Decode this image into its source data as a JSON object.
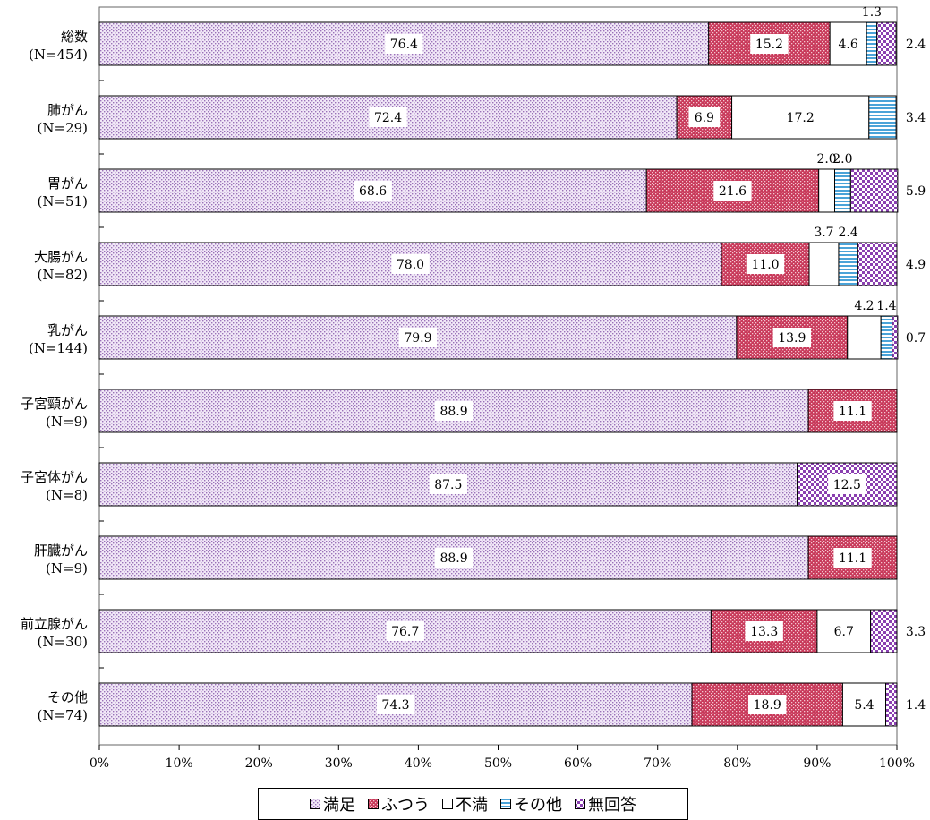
{
  "chart_data": {
    "type": "bar",
    "orientation": "horizontal",
    "stacked": true,
    "percent": true,
    "categories": [
      {
        "label": "総数",
        "n": "(N=454)"
      },
      {
        "label": "肺がん",
        "n": "(N=29)"
      },
      {
        "label": "胃がん",
        "n": "(N=51)"
      },
      {
        "label": "大腸がん",
        "n": "(N=82)"
      },
      {
        "label": "乳がん",
        "n": "(N=144)"
      },
      {
        "label": "子宮頸がん",
        "n": "(N=9)"
      },
      {
        "label": "子宮体がん",
        "n": "(N=8)"
      },
      {
        "label": "肝臓がん",
        "n": "(N=9)"
      },
      {
        "label": "前立腺がん",
        "n": "(N=30)"
      },
      {
        "label": "その他",
        "n": "(N=74)"
      }
    ],
    "series": [
      {
        "name": "満足",
        "color": "#cbb4df",
        "values": [
          76.4,
          72.4,
          68.6,
          78.0,
          79.9,
          88.9,
          87.5,
          88.9,
          76.7,
          74.3
        ]
      },
      {
        "name": "ふつう",
        "color": "#c8395a",
        "values": [
          15.2,
          6.9,
          21.6,
          11.0,
          13.9,
          11.1,
          0,
          11.1,
          13.3,
          18.9
        ]
      },
      {
        "name": "不満",
        "color": "#ffffff",
        "values": [
          4.6,
          17.2,
          2.0,
          3.7,
          4.2,
          0,
          0,
          0,
          6.7,
          5.4
        ]
      },
      {
        "name": "その他",
        "color": "#4aa3d8",
        "values": [
          1.3,
          3.4,
          2.0,
          2.4,
          1.4,
          0,
          0,
          0,
          0,
          0
        ]
      },
      {
        "name": "無回答",
        "color": "#8a3fb0",
        "values": [
          2.4,
          0,
          5.9,
          4.9,
          0.7,
          0,
          12.5,
          0,
          3.3,
          1.4
        ]
      }
    ],
    "data_labels": [
      [
        {
          "s": 0,
          "text": "76.4",
          "pos": "inside",
          "boxed": true
        },
        {
          "s": 1,
          "text": "15.2",
          "pos": "inside",
          "boxed": true
        },
        {
          "s": 2,
          "text": "4.6",
          "pos": "inside",
          "boxed": true
        },
        {
          "s": 3,
          "text": "1.3",
          "pos": "above"
        },
        {
          "s": 4,
          "text": "2.4",
          "pos": "right"
        }
      ],
      [
        {
          "s": 0,
          "text": "72.4",
          "pos": "inside",
          "boxed": true
        },
        {
          "s": 1,
          "text": "6.9",
          "pos": "inside",
          "boxed": true
        },
        {
          "s": 2,
          "text": "17.2",
          "pos": "inside",
          "boxed": false
        },
        {
          "s": 3,
          "text": "3.4",
          "pos": "right"
        }
      ],
      [
        {
          "s": 0,
          "text": "68.6",
          "pos": "inside",
          "boxed": true
        },
        {
          "s": 1,
          "text": "21.6",
          "pos": "inside",
          "boxed": true
        },
        {
          "s": 2,
          "text": "2.0",
          "pos": "above"
        },
        {
          "s": 3,
          "text": "2.0",
          "pos": "above"
        },
        {
          "s": 4,
          "text": "5.9",
          "pos": "right"
        }
      ],
      [
        {
          "s": 0,
          "text": "78.0",
          "pos": "inside",
          "boxed": true
        },
        {
          "s": 1,
          "text": "11.0",
          "pos": "inside",
          "boxed": true
        },
        {
          "s": 2,
          "text": "3.7",
          "pos": "above"
        },
        {
          "s": 3,
          "text": "2.4",
          "pos": "above"
        },
        {
          "s": 4,
          "text": "4.9",
          "pos": "right"
        }
      ],
      [
        {
          "s": 0,
          "text": "79.9",
          "pos": "inside",
          "boxed": true
        },
        {
          "s": 1,
          "text": "13.9",
          "pos": "inside",
          "boxed": true
        },
        {
          "s": 2,
          "text": "4.2",
          "pos": "above"
        },
        {
          "s": 3,
          "text": "1.4",
          "pos": "above"
        },
        {
          "s": 4,
          "text": "0.7",
          "pos": "right"
        }
      ],
      [
        {
          "s": 0,
          "text": "88.9",
          "pos": "inside",
          "boxed": true
        },
        {
          "s": 1,
          "text": "11.1",
          "pos": "inside",
          "boxed": true
        }
      ],
      [
        {
          "s": 0,
          "text": "87.5",
          "pos": "inside",
          "boxed": true
        },
        {
          "s": 4,
          "text": "12.5",
          "pos": "inside",
          "boxed": true
        }
      ],
      [
        {
          "s": 0,
          "text": "88.9",
          "pos": "inside",
          "boxed": true
        },
        {
          "s": 1,
          "text": "11.1",
          "pos": "inside",
          "boxed": true
        }
      ],
      [
        {
          "s": 0,
          "text": "76.7",
          "pos": "inside",
          "boxed": true
        },
        {
          "s": 1,
          "text": "13.3",
          "pos": "inside",
          "boxed": true
        },
        {
          "s": 2,
          "text": "6.7",
          "pos": "inside",
          "boxed": true
        },
        {
          "s": 4,
          "text": "3.3",
          "pos": "right"
        }
      ],
      [
        {
          "s": 0,
          "text": "74.3",
          "pos": "inside",
          "boxed": true
        },
        {
          "s": 1,
          "text": "18.9",
          "pos": "inside",
          "boxed": true
        },
        {
          "s": 2,
          "text": "5.4",
          "pos": "inside",
          "boxed": true
        },
        {
          "s": 4,
          "text": "1.4",
          "pos": "right"
        }
      ]
    ],
    "x_ticks": [
      "0%",
      "10%",
      "20%",
      "30%",
      "40%",
      "50%",
      "60%",
      "70%",
      "80%",
      "90%",
      "100%"
    ],
    "xlim": [
      0,
      100
    ],
    "grid": false,
    "legend_position": "bottom",
    "title": "",
    "xlabel": "",
    "ylabel": ""
  },
  "legend": {
    "items": [
      {
        "icon": "dotted-square-icon",
        "label": "満足"
      },
      {
        "icon": "red-pattern-square-icon",
        "label": "ふつう"
      },
      {
        "icon": "white-square-icon",
        "label": "不満"
      },
      {
        "icon": "blue-striped-square-icon",
        "label": "その他"
      },
      {
        "icon": "purple-checker-square-icon",
        "label": "無回答"
      }
    ]
  }
}
